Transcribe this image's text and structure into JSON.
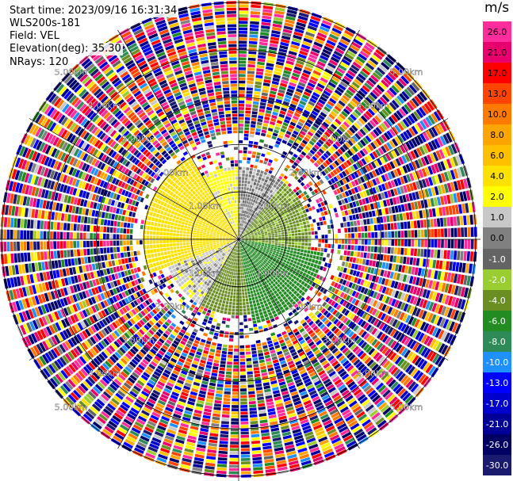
{
  "header": {
    "start_time": "Start time: 2023/09/16 16:31:34",
    "device": "WLS200s-181",
    "field": "Field: VEL",
    "elevation": "Elevation(deg): 35.30",
    "nrays": "NRays: 120"
  },
  "colorbar": {
    "unit": "m/s",
    "ticks": [
      "26.0",
      "21.0",
      "17.0",
      "13.0",
      "10.0",
      "8.0",
      "6.0",
      "4.0",
      "2.0",
      "1.0",
      "0.0",
      "-1.0",
      "-2.0",
      "-4.0",
      "-6.0",
      "-8.0",
      "-10.0",
      "-13.0",
      "-17.0",
      "-21.0",
      "-26.0",
      "-30.0"
    ],
    "colors": [
      "#ff2d9b",
      "#e8006c",
      "#ff0000",
      "#ff4500",
      "#ff7b00",
      "#ffa500",
      "#ffc000",
      "#ffe100",
      "#ffff00",
      "#c8c8c8",
      "#808080",
      "#646464",
      "#9acd32",
      "#6b8e23",
      "#228b22",
      "#2e8b57",
      "#1e90ff",
      "#0000ff",
      "#0000cd",
      "#000096",
      "#000064",
      "#1a1a6e"
    ]
  },
  "chart_data": {
    "type": "heatmap",
    "title": "",
    "field": "VEL",
    "unit": "m/s",
    "elevation_deg": 35.3,
    "nrays": 120,
    "range_ring_labels": [
      "1.00km",
      "2.00km",
      "3.00km",
      "4.00km",
      "5.00km"
    ],
    "range_rings_km": [
      1,
      2,
      3,
      4,
      5
    ],
    "max_range_km": 5.1,
    "color_scale": {
      "bounds": [
        -30,
        -26,
        -21,
        -17,
        -13,
        -10,
        -8,
        -6,
        -4,
        -2,
        -1,
        0,
        1,
        2,
        4,
        6,
        8,
        10,
        13,
        17,
        21,
        26
      ],
      "colors": [
        "#1a1a6e",
        "#000064",
        "#000096",
        "#0000cd",
        "#0000ff",
        "#1e90ff",
        "#2e8b57",
        "#228b22",
        "#6b8e23",
        "#9acd32",
        "#646464",
        "#808080",
        "#c8c8c8",
        "#ffff00",
        "#ffe100",
        "#ffc000",
        "#ffa500",
        "#ff7b00",
        "#ff4500",
        "#ff0000",
        "#e8006c",
        "#ff2d9b"
      ]
    },
    "near_field_pattern": [
      {
        "azimuth_from_deg": 250,
        "azimuth_to_deg": 330,
        "range_to_km": 2.0,
        "velocity_ms": 5.0
      },
      {
        "azimuth_from_deg": 330,
        "azimuth_to_deg": 360,
        "range_to_km": 1.5,
        "velocity_ms": 2.5
      },
      {
        "azimuth_from_deg": 0,
        "azimuth_to_deg": 40,
        "range_to_km": 1.5,
        "velocity_ms": 0.5
      },
      {
        "azimuth_from_deg": 40,
        "azimuth_to_deg": 100,
        "range_to_km": 1.5,
        "velocity_ms": -2.5
      },
      {
        "azimuth_from_deg": 100,
        "azimuth_to_deg": 170,
        "range_to_km": 1.8,
        "velocity_ms": -5.0
      },
      {
        "azimuth_from_deg": 170,
        "azimuth_to_deg": 210,
        "range_to_km": 1.6,
        "velocity_ms": -3.0
      },
      {
        "azimuth_from_deg": 210,
        "azimuth_to_deg": 250,
        "range_to_km": 1.6,
        "velocity_ms": 1.5
      }
    ],
    "far_field": "noise",
    "grid": true
  }
}
